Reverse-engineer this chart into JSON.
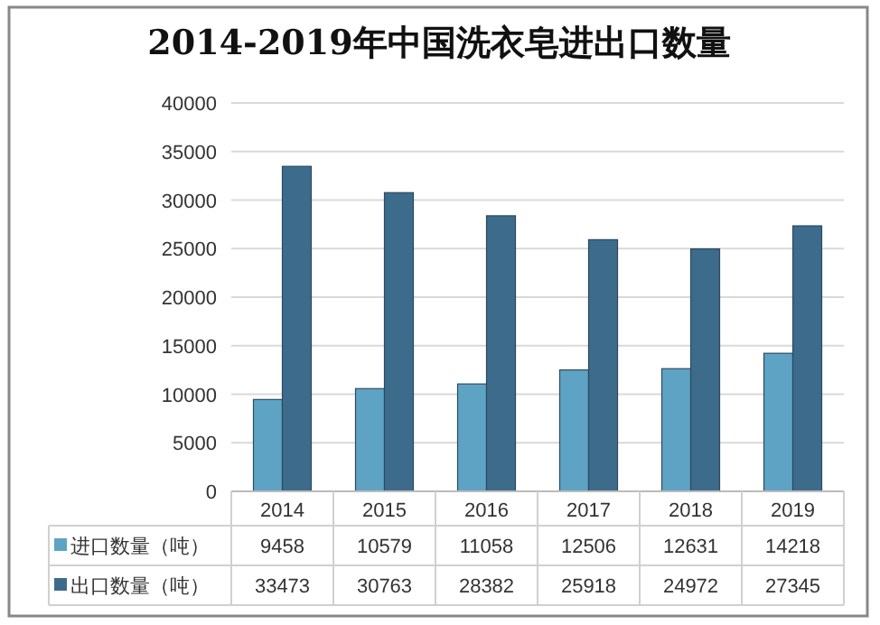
{
  "chart_data": {
    "type": "bar",
    "title": "2014-2019年中国洗衣皂进出口数量",
    "categories": [
      "2014",
      "2015",
      "2016",
      "2017",
      "2018",
      "2019"
    ],
    "series": [
      {
        "name": "进口数量（吨）",
        "color": "#5fa3c4",
        "values": [
          9458,
          10579,
          11058,
          12506,
          12631,
          14218
        ]
      },
      {
        "name": "出口数量（吨）",
        "color": "#3d6b8c",
        "values": [
          33473,
          30763,
          28382,
          25918,
          24972,
          27345
        ]
      }
    ],
    "ylim": [
      0,
      40000
    ],
    "yticks": [
      0,
      5000,
      10000,
      15000,
      20000,
      25000,
      30000,
      35000,
      40000
    ],
    "grid": "y",
    "legend": "bottom",
    "data_labels": true
  }
}
